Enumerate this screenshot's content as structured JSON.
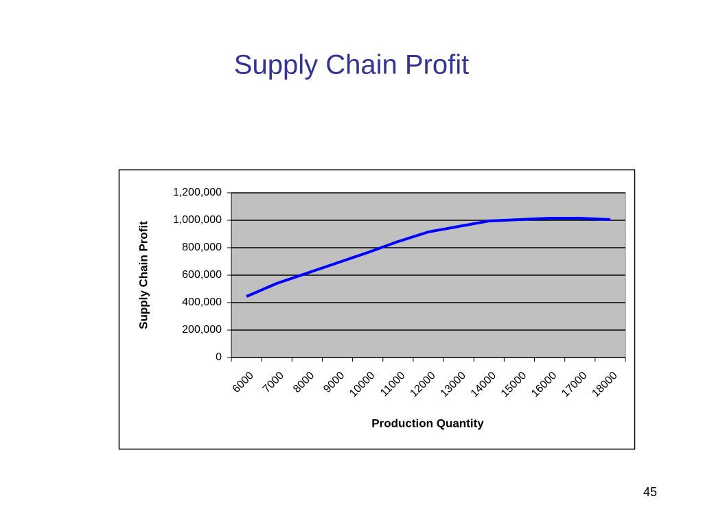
{
  "chart_data": {
    "type": "line",
    "title": "Supply Chain Profit",
    "x_label": "Production Quantity",
    "y_label": "Supply Chain Profit",
    "categories": [
      "6000",
      "7000",
      "8000",
      "9000",
      "10000",
      "11000",
      "12000",
      "13000",
      "14000",
      "15000",
      "16000",
      "17000",
      "18000"
    ],
    "series": [
      {
        "name": "Supply Chain Profit",
        "color": "#0000ff",
        "values": [
          445000,
          540000,
          615000,
          690000,
          765000,
          845000,
          915000,
          955000,
          995000,
          1005000,
          1015000,
          1015000,
          1005000
        ]
      }
    ],
    "ylim": [
      0,
      1200000
    ],
    "yticks": [
      0,
      {
        "value": 200000,
        "label": "200,000"
      },
      {
        "value": 400000,
        "label": "400,000"
      },
      {
        "value": 600000,
        "label": "600,000"
      },
      {
        "value": 800000,
        "label": "800,000"
      },
      {
        "value": 1000000,
        "label": "1,000,000"
      },
      {
        "value": 1200000,
        "label": "1,200,000"
      }
    ],
    "grid": true,
    "plot_background": "#c0c0c0"
  },
  "page_number": "45"
}
